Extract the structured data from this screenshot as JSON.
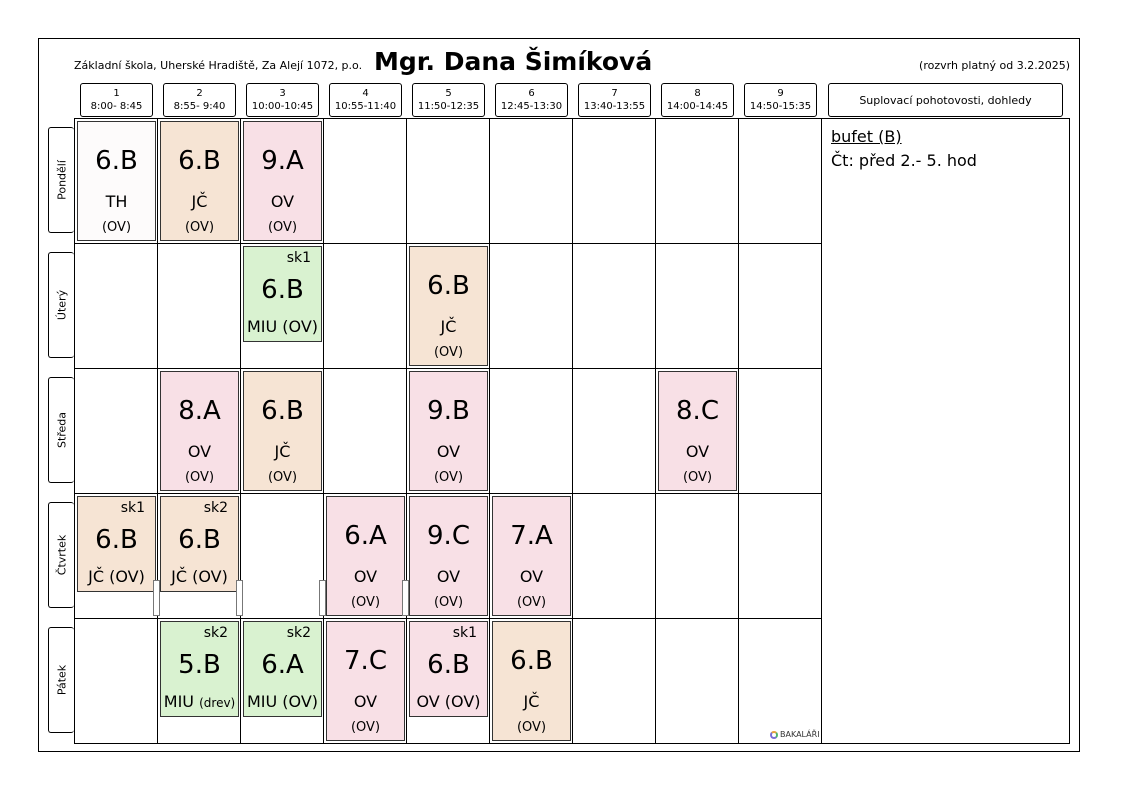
{
  "header": {
    "school": "Základní škola, Uherské Hradiště, Za Alejí 1072, p.o.",
    "teacher": "Mgr. Dana Šimíková",
    "valid": "(rozvrh platný od 3.2.2025)"
  },
  "periods": [
    {
      "num": "1",
      "time": "8:00- 8:45"
    },
    {
      "num": "2",
      "time": "8:55- 9:40"
    },
    {
      "num": "3",
      "time": "10:00-10:45"
    },
    {
      "num": "4",
      "time": "10:55-11:40"
    },
    {
      "num": "5",
      "time": "11:50-12:35"
    },
    {
      "num": "6",
      "time": "12:45-13:30"
    },
    {
      "num": "7",
      "time": "13:40-13:55"
    },
    {
      "num": "8",
      "time": "14:00-14:45"
    },
    {
      "num": "9",
      "time": "14:50-15:35"
    }
  ],
  "extra_header": "Suplovací pohotovosti, dohledy",
  "days": [
    "Pondělí",
    "Úterý",
    "Středa",
    "Čtvrtek",
    "Pátek"
  ],
  "duty": {
    "title": "bufet (B)",
    "text": "Čt: před 2.- 5. hod"
  },
  "colors": {
    "white": "#fdfbfb",
    "peach": "#f6e4d4",
    "pink": "#f8e0e6",
    "green": "#d9f2d0"
  },
  "lessons": {
    "mon1": {
      "cls": "6.B",
      "subj": "TH",
      "room": "(OV)"
    },
    "mon2": {
      "cls": "6.B",
      "subj": "JČ",
      "room": "(OV)"
    },
    "mon3": {
      "cls": "9.A",
      "subj": "OV",
      "room": "(OV)"
    },
    "tue3": {
      "cls": "6.B",
      "subj": "MIU (OV)",
      "grp": "sk1"
    },
    "tue5": {
      "cls": "6.B",
      "subj": "JČ",
      "room": "(OV)"
    },
    "wed2": {
      "cls": "8.A",
      "subj": "OV",
      "room": "(OV)"
    },
    "wed3": {
      "cls": "6.B",
      "subj": "JČ",
      "room": "(OV)"
    },
    "wed5": {
      "cls": "9.B",
      "subj": "OV",
      "room": "(OV)"
    },
    "wed8": {
      "cls": "8.C",
      "subj": "OV",
      "room": "(OV)"
    },
    "thu1": {
      "cls": "6.B",
      "subj": "JČ  (OV)",
      "grp": "sk1"
    },
    "thu2": {
      "cls": "6.B",
      "subj": "JČ  (OV)",
      "grp": "sk2"
    },
    "thu4": {
      "cls": "6.A",
      "subj": "OV",
      "room": "(OV)"
    },
    "thu5": {
      "cls": "9.C",
      "subj": "OV",
      "room": "(OV)"
    },
    "thu6": {
      "cls": "7.A",
      "subj": "OV",
      "room": "(OV)"
    },
    "fri2": {
      "cls": "5.B",
      "subj": "MIU",
      "subj_small": "(drev)",
      "grp": "sk2"
    },
    "fri3": {
      "cls": "6.A",
      "subj": "MIU (OV)",
      "grp": "sk2"
    },
    "fri4": {
      "cls": "7.C",
      "subj": "OV",
      "room": "(OV)"
    },
    "fri5": {
      "cls": "6.B",
      "subj": "OV (OV)",
      "grp": "sk1"
    },
    "fri6": {
      "cls": "6.B",
      "subj": "JČ",
      "room": "(OV)"
    }
  },
  "logo": "BAKALÁŘI"
}
